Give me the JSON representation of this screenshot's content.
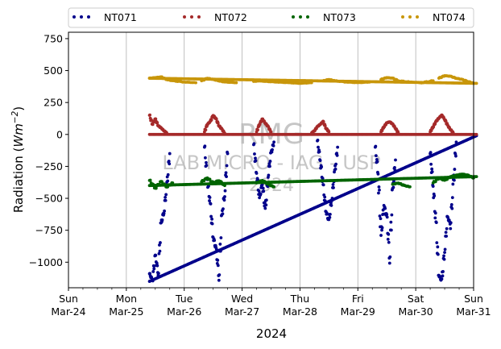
{
  "chart_data": {
    "type": "scatter",
    "title": "",
    "xlabel": "2024",
    "ylabel": "Radiation (Wm⁻²)",
    "ylabel_parts": {
      "prefix": "Radiation (",
      "unit_base": "Wm",
      "unit_exp": "−2",
      "suffix": ")"
    },
    "ylim": [
      -1200,
      800
    ],
    "xlim": [
      "2024-03-24",
      "2024-03-31"
    ],
    "yticks": [
      -1000,
      -750,
      -500,
      -250,
      0,
      250,
      500,
      750
    ],
    "ytick_labels": [
      "−1000",
      "−750",
      "−500",
      "−250",
      "0",
      "250",
      "500",
      "750"
    ],
    "xticks": [
      {
        "day": "Sun",
        "date": "Mar-24"
      },
      {
        "day": "Mon",
        "date": "Mar-25"
      },
      {
        "day": "Tue",
        "date": "Mar-26"
      },
      {
        "day": "Wed",
        "date": "Mar-27"
      },
      {
        "day": "Thu",
        "date": "Mar-28"
      },
      {
        "day": "Fri",
        "date": "Mar-29"
      },
      {
        "day": "Sat",
        "date": "Mar-30"
      },
      {
        "day": "Sun",
        "date": "Mar-31"
      }
    ],
    "grid": "vertical",
    "legend_position": "top",
    "watermark": {
      "line1": "RMG",
      "line2": "LAB MICRO - IAG - USP",
      "line3": "2024"
    },
    "series": [
      {
        "name": "NT071",
        "color": "#00008b",
        "baseline": [
          [
            1.4,
            -1150
          ],
          [
            7.05,
            -10
          ]
        ],
        "segments": [
          {
            "x": [
              1.4,
              1.45,
              1.5,
              1.55,
              1.6,
              1.65,
              1.7,
              1.75
            ],
            "y": [
              -1090,
              -1140,
              -950,
              -1080,
              -700,
              -600,
              -400,
              -150
            ]
          },
          {
            "x": [
              2.35,
              2.4,
              2.45,
              2.5,
              2.55,
              2.6,
              2.65,
              2.7,
              2.75
            ],
            "y": [
              -100,
              -350,
              -550,
              -800,
              -900,
              -1100,
              -650,
              -450,
              -150
            ]
          },
          {
            "x": [
              3.2,
              3.25,
              3.3,
              3.35,
              3.4,
              3.45,
              3.5,
              3.55
            ],
            "y": [
              -80,
              -300,
              -500,
              -380,
              -600,
              -320,
              -150,
              -60
            ]
          },
          {
            "x": [
              4.3,
              4.35,
              4.4,
              4.45,
              4.5,
              4.55,
              4.6,
              4.65
            ],
            "y": [
              -50,
              -200,
              -400,
              -600,
              -680,
              -500,
              -300,
              -100
            ]
          },
          {
            "x": [
              5.3,
              5.35,
              5.4,
              5.45,
              5.5,
              5.55,
              5.6,
              5.65
            ],
            "y": [
              -100,
              -300,
              -800,
              -550,
              -650,
              -960,
              -450,
              -200
            ]
          },
          {
            "x": [
              6.25,
              6.3,
              6.35,
              6.4,
              6.45,
              6.5,
              6.55,
              6.6,
              6.65,
              6.7
            ],
            "y": [
              -150,
              -400,
              -700,
              -1100,
              -1150,
              -900,
              -650,
              -700,
              -400,
              -60
            ]
          }
        ]
      },
      {
        "name": "NT072",
        "color": "#a52a2a",
        "baseline": [
          [
            1.4,
            0
          ],
          [
            7.05,
            0
          ]
        ],
        "segments": [
          {
            "x": [
              1.4,
              1.45,
              1.5,
              1.55,
              1.6,
              1.65,
              1.7
            ],
            "y": [
              150,
              80,
              120,
              70,
              50,
              30,
              10
            ]
          },
          {
            "x": [
              2.35,
              2.4,
              2.45,
              2.5,
              2.55,
              2.6,
              2.65,
              2.7
            ],
            "y": [
              20,
              80,
              100,
              150,
              120,
              70,
              40,
              10
            ]
          },
          {
            "x": [
              3.25,
              3.3,
              3.35,
              3.4,
              3.45,
              3.5
            ],
            "y": [
              20,
              80,
              120,
              90,
              60,
              20
            ]
          },
          {
            "x": [
              4.2,
              4.25,
              4.3,
              4.35,
              4.4,
              4.45,
              4.5
            ],
            "y": [
              10,
              30,
              60,
              80,
              100,
              50,
              20
            ]
          },
          {
            "x": [
              5.4,
              5.45,
              5.5,
              5.55,
              5.6,
              5.65,
              5.7
            ],
            "y": [
              20,
              60,
              90,
              100,
              80,
              50,
              10
            ]
          },
          {
            "x": [
              6.25,
              6.3,
              6.35,
              6.4,
              6.45,
              6.5,
              6.55,
              6.6,
              6.65
            ],
            "y": [
              20,
              60,
              100,
              130,
              150,
              120,
              70,
              40,
              10
            ]
          }
        ]
      },
      {
        "name": "NT073",
        "color": "#006400",
        "baseline": [
          [
            1.4,
            -400
          ],
          [
            7.05,
            -330
          ]
        ],
        "segments": [
          {
            "x": [
              1.4,
              1.5,
              1.6,
              1.7,
              1.8
            ],
            "y": [
              -360,
              -420,
              -370,
              -410,
              -380
            ]
          },
          {
            "x": [
              2.3,
              2.4,
              2.5,
              2.6,
              2.7
            ],
            "y": [
              -370,
              -340,
              -380,
              -360,
              -400
            ]
          },
          {
            "x": [
              3.25,
              3.35,
              3.45,
              3.55
            ],
            "y": [
              -380,
              -360,
              -390,
              -410
            ]
          },
          {
            "x": [
              5.6,
              5.7,
              5.8,
              5.9
            ],
            "y": [
              -390,
              -380,
              -400,
              -410
            ]
          },
          {
            "x": [
              6.3,
              6.4,
              6.5,
              6.6,
              6.7,
              6.8,
              6.9,
              7.0
            ],
            "y": [
              -380,
              -340,
              -360,
              -330,
              -320,
              -310,
              -320,
              -340
            ]
          }
        ]
      },
      {
        "name": "NT074",
        "color": "#c8960a",
        "baseline": [
          [
            1.4,
            440
          ],
          [
            7.05,
            400
          ]
        ],
        "segments": [
          {
            "x": [
              1.4,
              1.5,
              1.6,
              1.7,
              1.8,
              2.0,
              2.2
            ],
            "y": [
              440,
              445,
              450,
              430,
              420,
              410,
              405
            ]
          },
          {
            "x": [
              2.3,
              2.4,
              2.5,
              2.6,
              2.7,
              2.9
            ],
            "y": [
              420,
              440,
              430,
              420,
              410,
              405
            ]
          },
          {
            "x": [
              3.2,
              3.3,
              3.4,
              3.6,
              3.8,
              4.0,
              4.2
            ],
            "y": [
              415,
              420,
              415,
              410,
              405,
              400,
              405
            ]
          },
          {
            "x": [
              4.4,
              4.5,
              4.6,
              4.8,
              5.0,
              5.2
            ],
            "y": [
              420,
              430,
              420,
              410,
              405,
              410
            ]
          },
          {
            "x": [
              5.4,
              5.5,
              5.6,
              5.7,
              5.9,
              6.1,
              6.3
            ],
            "y": [
              430,
              445,
              440,
              420,
              410,
              405,
              420
            ]
          },
          {
            "x": [
              6.4,
              6.5,
              6.6,
              6.7,
              6.8,
              6.9,
              7.0
            ],
            "y": [
              440,
              460,
              455,
              440,
              430,
              415,
              400
            ]
          }
        ]
      }
    ]
  }
}
